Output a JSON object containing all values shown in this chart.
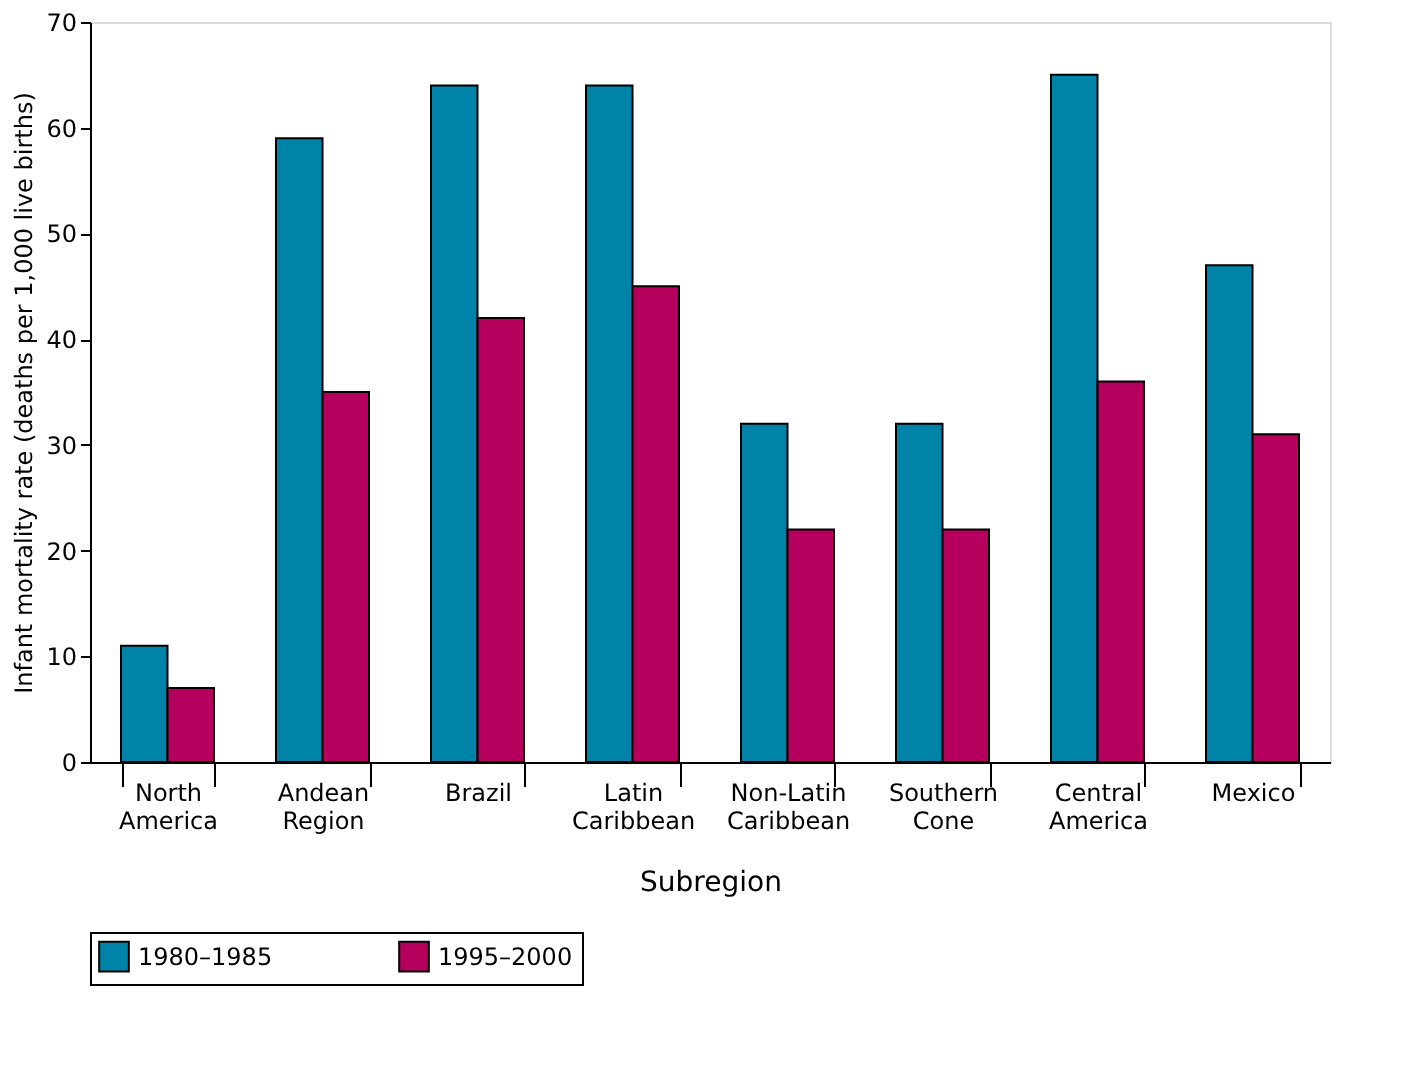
{
  "chart_data": {
    "type": "bar",
    "xlabel": "Subregion",
    "ylabel": "Infant mortality rate (deaths per 1,000 live births)",
    "categories": [
      "North America",
      "Andean Region",
      "Brazil",
      "Latin Caribbean",
      "Non-Latin Caribbean",
      "Southern Cone",
      "Central America",
      "Mexico"
    ],
    "series": [
      {
        "name": "1980–1985",
        "color": "#0083a9",
        "values": [
          11,
          59,
          64,
          64,
          32,
          32,
          65,
          47
        ]
      },
      {
        "name": "1995–2000",
        "color": "#b5005e",
        "values": [
          7,
          35,
          42,
          45,
          22,
          22,
          36,
          31
        ]
      }
    ],
    "ylim": [
      0,
      70
    ],
    "yticks": [
      0,
      10,
      20,
      30,
      40,
      50,
      60,
      70
    ],
    "grid": false,
    "legend": "bottom"
  }
}
